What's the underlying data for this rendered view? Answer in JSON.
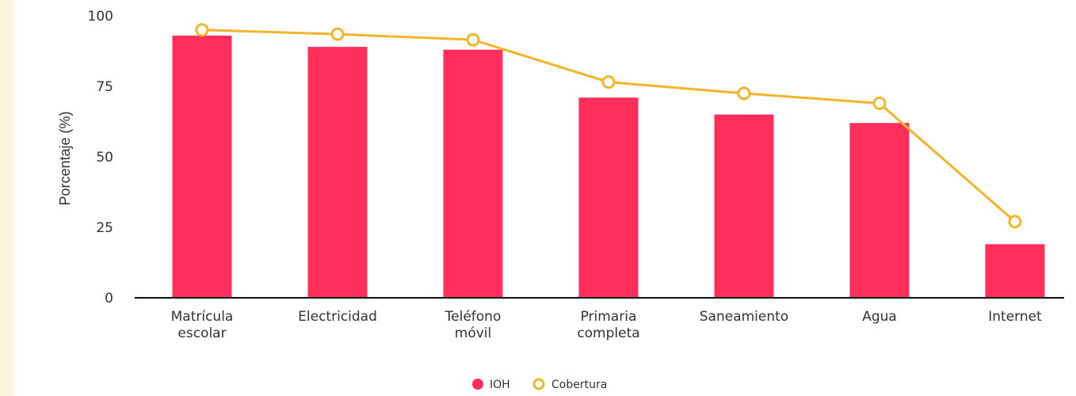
{
  "chart_data": {
    "type": "bar",
    "title": "",
    "xlabel": "",
    "ylabel": "Porcentaje (%)",
    "ylim": [
      0,
      100
    ],
    "yticks": [
      "0",
      "25",
      "50",
      "75",
      "100"
    ],
    "grid": false,
    "legend_position": "bottom-center",
    "categories": [
      [
        "Matrícula",
        "escolar"
      ],
      [
        "Electricidad"
      ],
      [
        "Teléfono",
        "móvil"
      ],
      [
        "Primaria",
        "completa"
      ],
      [
        "Saneamiento"
      ],
      [
        "Agua"
      ],
      [
        "Internet"
      ]
    ],
    "series": [
      {
        "name": "IOH",
        "type": "bar",
        "values": [
          93,
          89,
          88,
          71,
          65,
          62,
          19
        ],
        "color": "#ff2e5b"
      },
      {
        "name": "Cobertura",
        "type": "line",
        "values": [
          95,
          93.5,
          91.5,
          76.5,
          72.5,
          69,
          27
        ],
        "color": "#f5b42a"
      }
    ]
  }
}
